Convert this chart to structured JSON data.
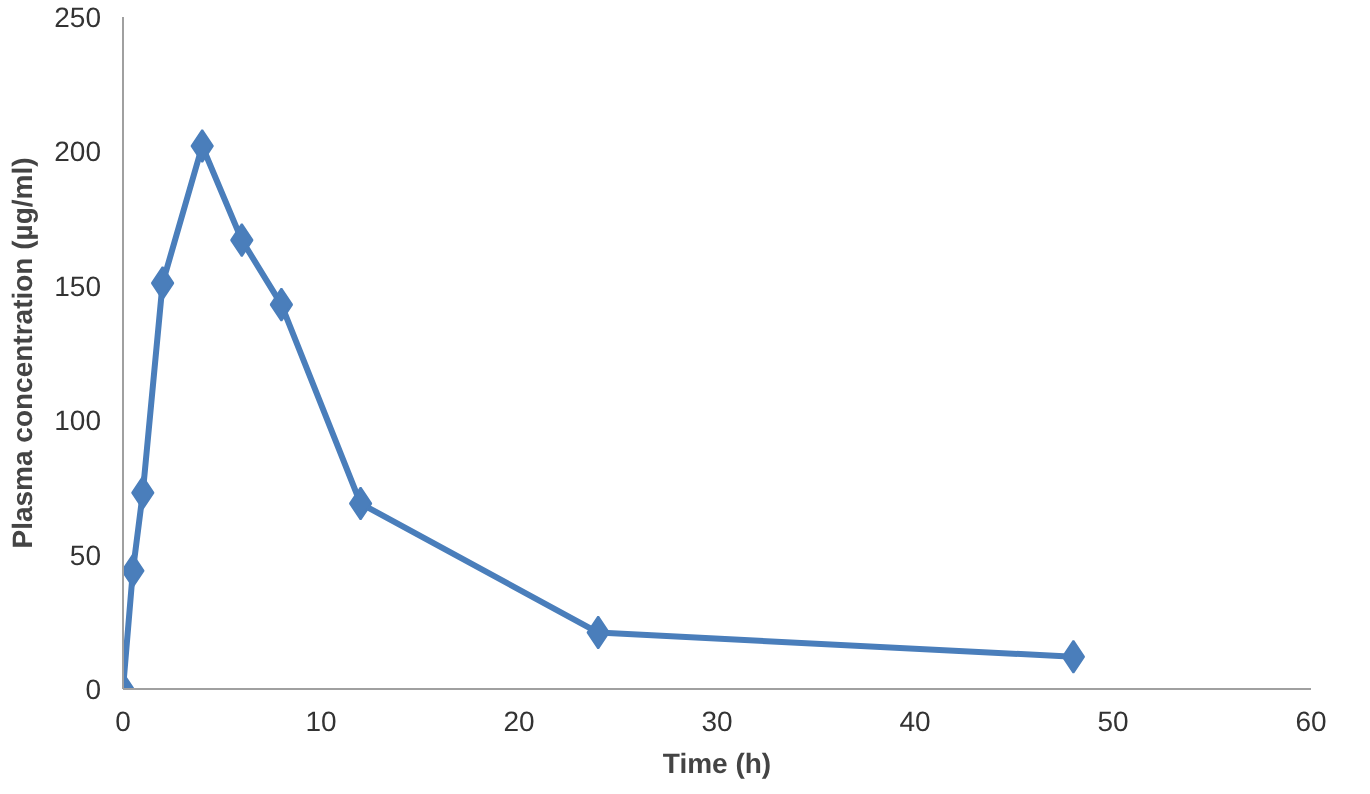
{
  "chart_data": {
    "type": "line",
    "xlabel": "Time (h)",
    "ylabel": "Plasma concentration (µg/ml)",
    "x": [
      0,
      0.5,
      1,
      2,
      4,
      6,
      8,
      12,
      24,
      48
    ],
    "series": [
      {
        "color": "#4a7ebb",
        "values": [
          0,
          44,
          73,
          151,
          202,
          167,
          143,
          69,
          21,
          12
        ]
      }
    ],
    "xlim": [
      0,
      60
    ],
    "xticks": [
      0,
      10,
      20,
      30,
      40,
      50,
      60
    ],
    "ylim": [
      0,
      250
    ],
    "yticks": [
      0,
      50,
      100,
      150,
      200,
      250
    ],
    "grid": false,
    "marker": "diamond",
    "line_style": "solid"
  }
}
